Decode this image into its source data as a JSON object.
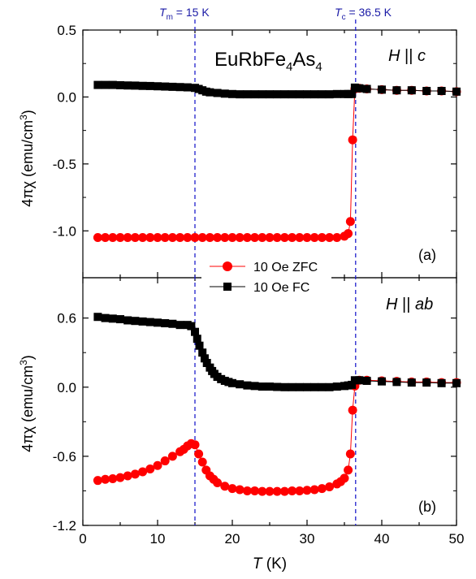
{
  "chart_data": [
    {
      "type": "scatter",
      "panel": "(a)",
      "title": "EuRbFe4As4",
      "field_label": "H || c",
      "xlabel": "T (K)",
      "ylabel": "4πχ (emu/cm3)",
      "xlim": [
        0,
        50
      ],
      "ylim": [
        -1.35,
        0.5
      ],
      "yticks": [
        0.5,
        0.0,
        -0.5,
        -1.0
      ],
      "series": [
        {
          "name": "10 Oe ZFC",
          "color": "#ff0000",
          "marker": "circle",
          "x": [
            2,
            3,
            4,
            5,
            6,
            7,
            8,
            9,
            10,
            11,
            12,
            13,
            14,
            15,
            16,
            17,
            18,
            19,
            20,
            21,
            22,
            23,
            24,
            25,
            26,
            27,
            28,
            29,
            30,
            31,
            32,
            33,
            34,
            35,
            35.5,
            35.8,
            36.1,
            36.4,
            37,
            38,
            40,
            42,
            44,
            46,
            48,
            50
          ],
          "y": [
            -1.05,
            -1.05,
            -1.05,
            -1.05,
            -1.05,
            -1.05,
            -1.05,
            -1.05,
            -1.05,
            -1.05,
            -1.05,
            -1.05,
            -1.05,
            -1.05,
            -1.05,
            -1.05,
            -1.05,
            -1.05,
            -1.05,
            -1.05,
            -1.05,
            -1.05,
            -1.05,
            -1.05,
            -1.05,
            -1.05,
            -1.05,
            -1.05,
            -1.05,
            -1.05,
            -1.05,
            -1.05,
            -1.05,
            -1.04,
            -1.02,
            -0.93,
            -0.32,
            0.06,
            0.065,
            0.06,
            0.055,
            0.05,
            0.05,
            0.045,
            0.045,
            0.04
          ]
        },
        {
          "name": "10 Oe FC",
          "color": "#000000",
          "marker": "square",
          "x": [
            2,
            3,
            4,
            5,
            6,
            7,
            8,
            9,
            10,
            11,
            12,
            13,
            14,
            15,
            15.5,
            16,
            16.5,
            17,
            18,
            19,
            20,
            21,
            22,
            23,
            24,
            25,
            26,
            27,
            28,
            29,
            30,
            31,
            32,
            33,
            34,
            35,
            35.5,
            36,
            36.4,
            37,
            38,
            40,
            42,
            44,
            46,
            48,
            50
          ],
          "y": [
            0.09,
            0.09,
            0.09,
            0.088,
            0.086,
            0.085,
            0.083,
            0.082,
            0.08,
            0.078,
            0.076,
            0.074,
            0.072,
            0.068,
            0.06,
            0.05,
            0.04,
            0.035,
            0.03,
            0.025,
            0.022,
            0.02,
            0.02,
            0.02,
            0.02,
            0.02,
            0.02,
            0.02,
            0.02,
            0.02,
            0.02,
            0.02,
            0.02,
            0.02,
            0.022,
            0.022,
            0.022,
            0.022,
            0.07,
            0.065,
            0.06,
            0.055,
            0.05,
            0.05,
            0.045,
            0.045,
            0.04
          ]
        }
      ],
      "reference_lines": [
        {
          "label_symbol": "T",
          "label_sub": "m",
          "label_value": " = 15 K",
          "x": 15
        },
        {
          "label_symbol": "T",
          "label_sub": "c",
          "label_value": " = 36.5 K",
          "x": 36.5
        }
      ]
    },
    {
      "type": "scatter",
      "panel": "(b)",
      "field_label": "H || ab",
      "xlabel": "T (K)",
      "ylabel": "4πχ (emu/cm3)",
      "xlim": [
        0,
        50
      ],
      "ylim": [
        -1.2,
        0.95
      ],
      "yticks": [
        0.6,
        0.0,
        -0.6,
        -1.2
      ],
      "xticks": [
        0,
        10,
        20,
        30,
        40,
        50
      ],
      "series": [
        {
          "name": "10 Oe ZFC",
          "color": "#ff0000",
          "marker": "circle",
          "x": [
            2,
            3,
            4,
            5,
            6,
            7,
            8,
            9,
            10,
            11,
            12,
            13,
            13.5,
            14,
            14.5,
            15,
            15.5,
            16,
            16.5,
            17,
            17.5,
            18,
            19,
            20,
            21,
            22,
            23,
            24,
            25,
            26,
            27,
            28,
            29,
            30,
            31,
            32,
            33,
            34,
            34.5,
            35,
            35.5,
            35.8,
            36.1,
            36.4,
            37,
            38,
            40,
            42,
            44,
            46,
            48,
            50
          ],
          "y": [
            -0.81,
            -0.8,
            -0.795,
            -0.785,
            -0.77,
            -0.755,
            -0.735,
            -0.71,
            -0.68,
            -0.64,
            -0.6,
            -0.56,
            -0.54,
            -0.51,
            -0.49,
            -0.5,
            -0.58,
            -0.65,
            -0.72,
            -0.77,
            -0.8,
            -0.83,
            -0.86,
            -0.88,
            -0.89,
            -0.9,
            -0.9,
            -0.905,
            -0.905,
            -0.905,
            -0.905,
            -0.9,
            -0.9,
            -0.895,
            -0.89,
            -0.88,
            -0.865,
            -0.84,
            -0.82,
            -0.79,
            -0.72,
            -0.58,
            -0.2,
            0.01,
            0.06,
            0.06,
            0.055,
            0.05,
            0.045,
            0.045,
            0.04,
            0.04
          ]
        },
        {
          "name": "10 Oe FC",
          "color": "#000000",
          "marker": "square",
          "x": [
            2,
            3,
            4,
            5,
            6,
            7,
            8,
            9,
            10,
            11,
            12,
            13,
            14,
            14.5,
            15,
            15.3,
            15.6,
            16,
            16.3,
            16.6,
            17,
            17.3,
            17.6,
            18,
            18.5,
            19,
            19.5,
            20,
            21,
            22,
            23,
            24,
            25,
            26,
            27,
            28,
            29,
            30,
            31,
            32,
            33,
            34,
            35,
            35.5,
            36,
            36.4,
            37,
            38,
            40,
            42,
            44,
            46,
            48,
            50
          ],
          "y": [
            0.61,
            0.6,
            0.595,
            0.59,
            0.58,
            0.575,
            0.57,
            0.565,
            0.56,
            0.555,
            0.55,
            0.54,
            0.54,
            0.53,
            0.48,
            0.42,
            0.36,
            0.3,
            0.25,
            0.21,
            0.17,
            0.14,
            0.115,
            0.09,
            0.07,
            0.055,
            0.045,
            0.035,
            0.025,
            0.015,
            0.01,
            0.005,
            0.005,
            0.002,
            0.0,
            0.0,
            0.0,
            0.0,
            0.0,
            0.0,
            0.0,
            0.005,
            0.01,
            0.015,
            0.02,
            0.06,
            0.06,
            0.055,
            0.05,
            0.045,
            0.04,
            0.04,
            0.035,
            0.035
          ]
        }
      ],
      "reference_lines": [
        {
          "x": 15
        },
        {
          "x": 36.5
        }
      ]
    }
  ],
  "legend": [
    {
      "label": "10 Oe ZFC",
      "color": "#ff0000",
      "marker": "circle"
    },
    {
      "label": "10 Oe FC",
      "color": "#000000",
      "marker": "square"
    }
  ],
  "labels": {
    "tm_symbol": "T",
    "tm_sub": "m",
    "tm_value": " = 15 K",
    "tc_symbol": "T",
    "tc_sub": "c",
    "tc_value": " = 36.5 K",
    "compound_a": "EuRbFe",
    "compound_sub1": "4",
    "compound_b": "As",
    "compound_sub2": "4",
    "panel_a_field_H": "H",
    "panel_a_field_par": " || ",
    "panel_a_field_dir": "c",
    "panel_b_field_H": "H",
    "panel_b_field_par": " || ",
    "panel_b_field_dir": "ab",
    "panel_a_tag": "(a)",
    "panel_b_tag": "(b)",
    "ylabel_main": "4πχ (emu/cm",
    "ylabel_sup": "3",
    "ylabel_close": ")",
    "xlabel_T": "T",
    "xlabel_unit": " (K)",
    "yticks_a": [
      "0.5",
      "0.0",
      "-0.5",
      "-1.0"
    ],
    "yticks_b": [
      "0.6",
      "0.0",
      "-0.6",
      "-1.2"
    ],
    "xticks": [
      "0",
      "10",
      "20",
      "30",
      "40",
      "50"
    ]
  }
}
